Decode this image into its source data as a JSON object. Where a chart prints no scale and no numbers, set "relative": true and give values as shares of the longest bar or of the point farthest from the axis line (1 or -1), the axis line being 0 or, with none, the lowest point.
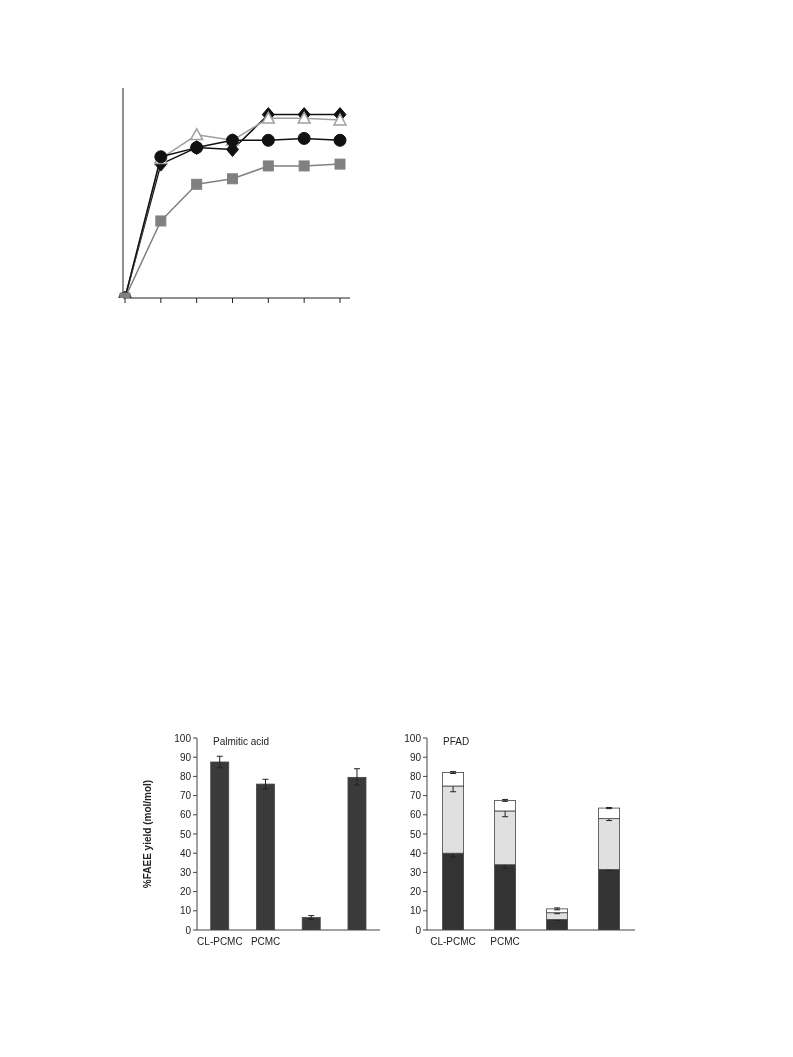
{
  "chart_data": [
    {
      "type": "line",
      "relative": true,
      "categories": [
        null,
        null,
        null,
        null,
        null,
        null,
        null
      ],
      "line_style": "solid",
      "series": [
        {
          "color": "#111111",
          "marker": "diamond",
          "values": [
            0,
            0.73,
            0.82,
            0.81,
            1.0,
            1.0,
            1.0
          ]
        },
        {
          "color": "#a0a0a0",
          "marker": "triangle",
          "values": [
            0,
            0.76,
            0.89,
            0.86,
            0.98,
            0.98,
            0.97
          ]
        },
        {
          "color": "#111111",
          "marker": "circle",
          "values": [
            0,
            0.77,
            0.82,
            0.86,
            0.86,
            0.87,
            0.86
          ]
        },
        {
          "color": "#808080",
          "marker": "square",
          "values": [
            0,
            0.42,
            0.62,
            0.65,
            0.72,
            0.72,
            0.73
          ]
        }
      ]
    },
    {
      "type": "bar",
      "title": "Palmitic acid",
      "ylabel": "%FAEE yield (mol/mol)",
      "categories": [
        "CL-PCMC",
        "PCMC",
        null,
        null
      ],
      "ylim": [
        0,
        100
      ],
      "yticks": [
        0,
        10,
        20,
        30,
        40,
        50,
        60,
        70,
        80,
        90,
        100
      ],
      "series": [
        {
          "color": "#3a3a3a",
          "values": [
            87.5,
            76,
            6.5,
            79.5
          ],
          "errors": [
            3,
            2.5,
            1,
            [
              75.5,
              84
            ]
          ]
        }
      ]
    },
    {
      "type": "bar",
      "title": "PFAD",
      "stacked": true,
      "categories": [
        "CL-PCMC",
        "PCMC",
        null,
        null
      ],
      "ylim": [
        0,
        100
      ],
      "yticks": [
        0,
        10,
        20,
        30,
        40,
        50,
        60,
        70,
        80,
        90,
        100
      ],
      "series": [
        {
          "color": "#333333",
          "values": [
            40,
            34,
            5.5,
            31.5
          ],
          "errors": [
            2,
            2,
            0.5,
            0.5
          ]
        },
        {
          "color": "#e0e0e0",
          "values": [
            35,
            28,
            3.5,
            26.5
          ],
          "errors": [
            3,
            3,
            0.5,
            1
          ]
        },
        {
          "color": "#ffffff",
          "values": [
            7,
            5.5,
            2,
            5.5
          ],
          "errors": [
            0.5,
            0.5,
            0.5,
            0.3
          ]
        }
      ]
    }
  ]
}
